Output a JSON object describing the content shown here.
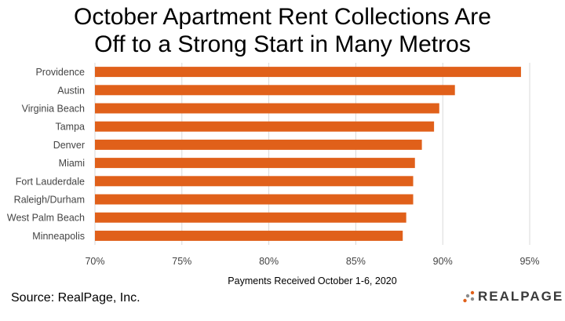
{
  "chart_data": {
    "type": "bar",
    "orientation": "horizontal",
    "title_lines": [
      "October Apartment Rent Collections Are",
      "Off to a Strong Start in Many Metros"
    ],
    "categories": [
      "Providence",
      "Austin",
      "Virginia Beach",
      "Tampa",
      "Denver",
      "Miami",
      "Fort Lauderdale",
      "Raleigh/Durham",
      "West Palm Beach",
      "Minneapolis"
    ],
    "values": [
      94.5,
      90.7,
      89.8,
      89.5,
      88.8,
      88.4,
      88.3,
      88.3,
      87.9,
      87.7
    ],
    "xlabel": "Payments Received October 1-6, 2020",
    "xlim": [
      70,
      95
    ],
    "ticks": [
      70,
      75,
      80,
      85,
      90,
      95
    ],
    "tick_suffix": "%",
    "grid": "vertical",
    "bar_color": "#E0601A",
    "grid_color": "#D9D9D9"
  },
  "source": "Source: RealPage, Inc.",
  "logo": {
    "wordmark": "REALPAGE",
    "dot_colors": [
      "#E0601A",
      "#8C8C8C"
    ]
  }
}
